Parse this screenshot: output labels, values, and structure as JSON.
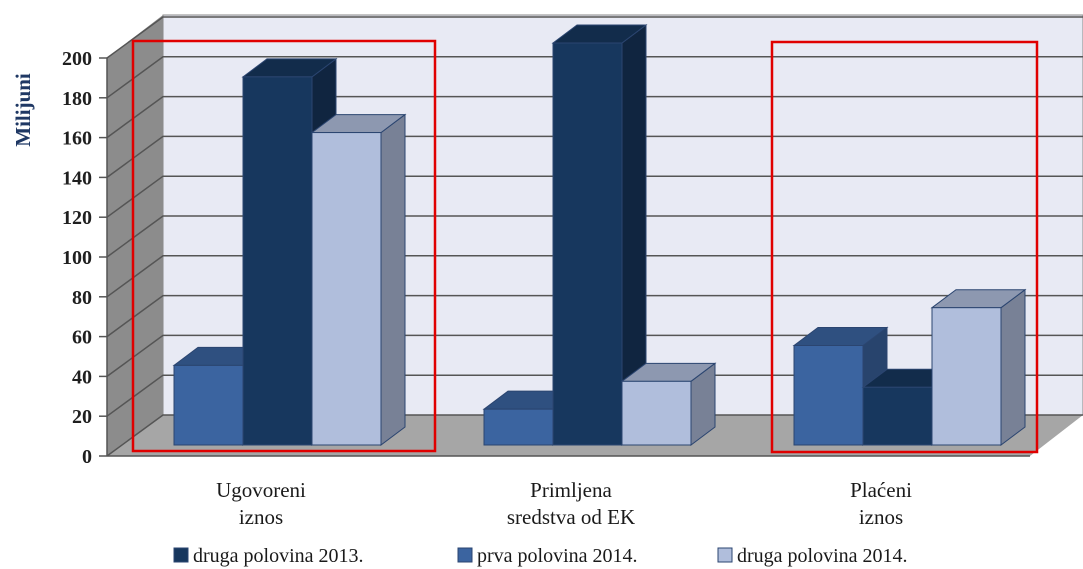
{
  "chart_data": {
    "type": "bar3d",
    "y_label": "Milijuni",
    "categories": [
      [
        "Ugovoreni",
        "iznos"
      ],
      [
        "Primljena",
        "sredstva od EK"
      ],
      [
        "Plaćeni",
        "iznos"
      ]
    ],
    "series": [
      {
        "name": "druga polovina 2013.",
        "color": "#17375e",
        "values": [
          185,
          202,
          29
        ]
      },
      {
        "name": "prva polovina 2014.",
        "color": "#3b64a0",
        "values": [
          40,
          18,
          50
        ]
      },
      {
        "name": "druga polovina 2014.",
        "color": "#b0bedc",
        "values": [
          157,
          32,
          69
        ]
      }
    ],
    "ylim": [
      0,
      200
    ],
    "yticks": [
      0,
      20,
      40,
      60,
      80,
      100,
      120,
      140,
      160,
      180,
      200
    ],
    "grid": true,
    "legend": "bottom"
  }
}
